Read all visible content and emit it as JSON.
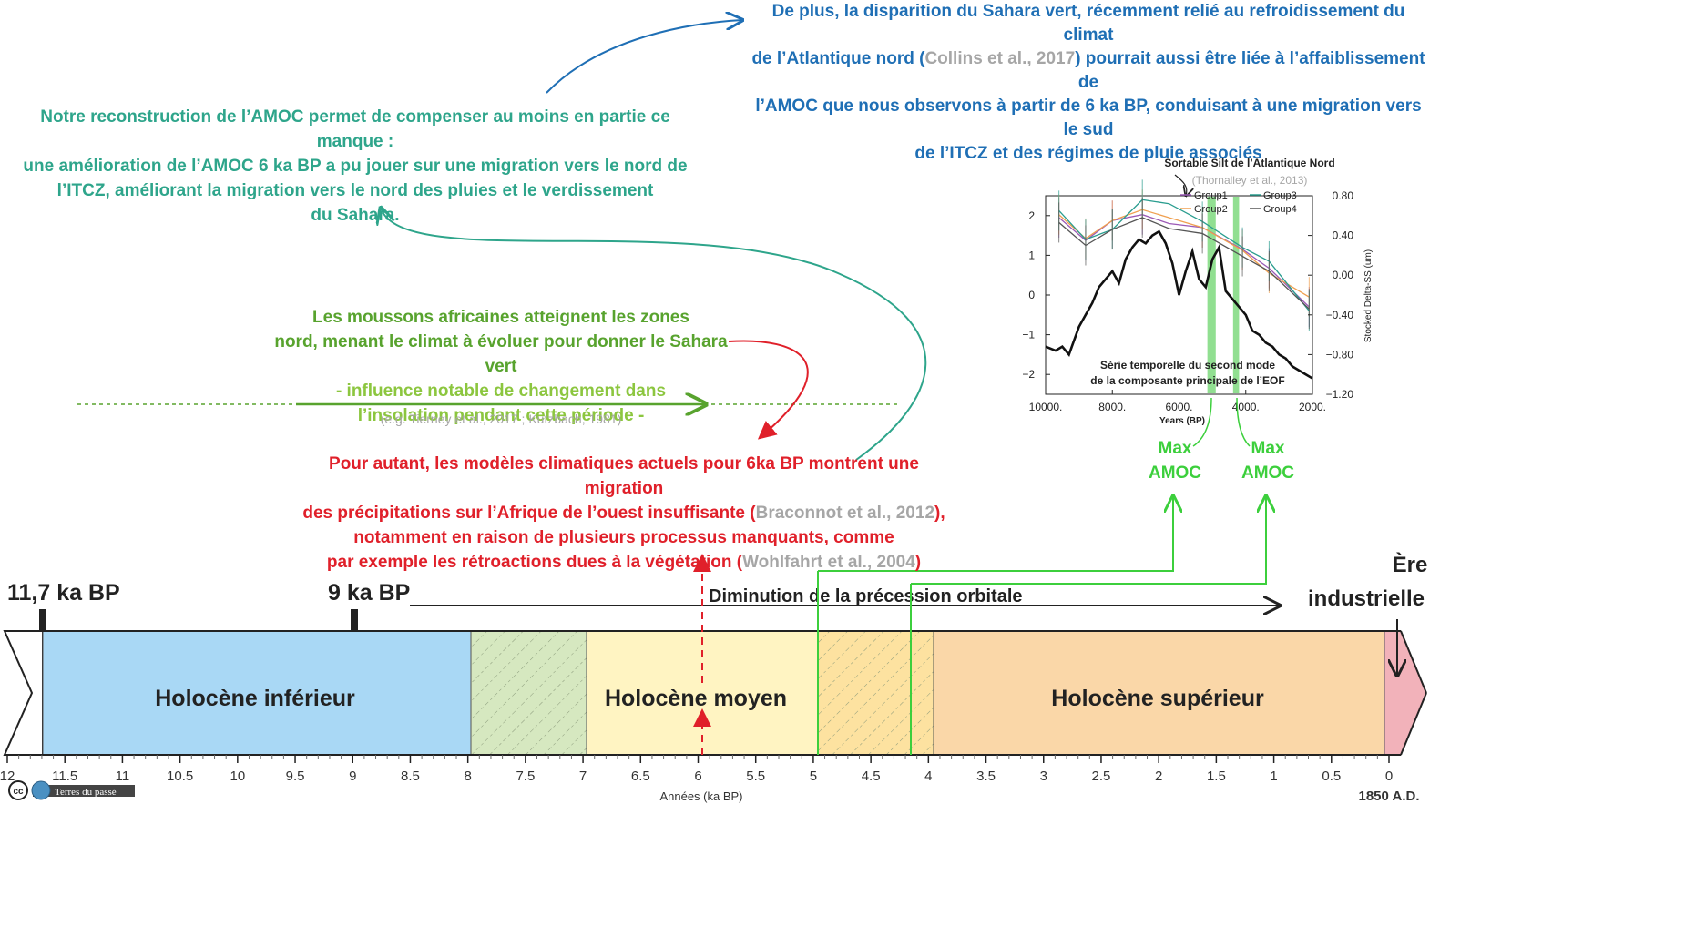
{
  "texts": {
    "amoc_sahara_line1": "De plus, la disparition du Sahara vert, récemment relié au refroidissement du climat",
    "amoc_sahara_line2a": "de l’Atlantique nord (",
    "amoc_sahara_ref": "Collins et al., 2017",
    "amoc_sahara_line2b": ") pourrait aussi être liée à l’affaiblissement de",
    "amoc_sahara_line3": "l’AMOC que nous observons à partir de 6 ka BP, conduisant à une migration vers le sud",
    "amoc_sahara_line4": "de l’ITCZ et des régimes de pluie associés",
    "reconstruction_line1": "Notre reconstruction de l’AMOC permet de compenser au moins en partie ce manque :",
    "reconstruction_line2": "une amélioration de l’AMOC 6 ka BP a pu jouer sur une migration vers le nord de",
    "reconstruction_line3": "l’ITCZ, améliorant la migration vers le nord des pluies et le verdissement",
    "reconstruction_line4": "du Sahara.",
    "monsoon_line1": "Les moussons africaines atteignent les zones",
    "monsoon_line2": "nord, menant le climat à évoluer pour donner le Sahara vert",
    "monsoon_line3": "- influence notable de changement dans",
    "monsoon_line4": "l’insolation pendant cette période -",
    "monsoon_ref": "(e.g. Tierney et al., 2017 ; Kutzbach, 1981)",
    "models_line1": "Pour autant, les modèles climatiques actuels pour 6ka BP montrent une migration",
    "models_line2a": "des précipitations sur l’Afrique de l’ouest insuffisante (",
    "models_ref1": "Braconnot et al., 2012",
    "models_line2b": "),",
    "models_line3": "notamment en raison de plusieurs processus manquants, comme",
    "models_line4a": "par exemple les rétroactions dues à la végétation (",
    "models_ref2": "Wohlfahrt et al., 2004",
    "models_line4b": ")",
    "label_117": "11,7 ka BP",
    "label_9": "9 ka BP",
    "precession": "Diminution de la précession orbitale",
    "industrial_line1": "Ère",
    "industrial_line2": "industrielle",
    "period_lower": "Holocène inférieur",
    "period_middle": "Holocène moyen",
    "period_upper": "Holocène supérieur",
    "axis_label": "Années (ka BP)",
    "axis_end": "1850 A.D.",
    "max_amoc_1a": "Max",
    "max_amoc_1b": "AMOC",
    "max_amoc_2a": "Max",
    "max_amoc_2b": "AMOC",
    "logo_text": "Terres du passé",
    "logo_cc": "cc"
  },
  "axis_ticks": [
    "12",
    "11.5",
    "11",
    "10.5",
    "10",
    "9.5",
    "9",
    "8.5",
    "8",
    "7.5",
    "7",
    "6.5",
    "6",
    "5.5",
    "5",
    "4.5",
    "4",
    "3.5",
    "3",
    "2.5",
    "2",
    "1.5",
    "1",
    "0.5",
    "0"
  ],
  "inset": {
    "title": "Sortable Silt de l’Atlantique Nord",
    "ref": "(Thornalley et al., 2013)",
    "legend": [
      "Group1",
      "Group2",
      "Group3",
      "Group4"
    ],
    "xlabel": "Years (BP)",
    "ylabel_right": "Stocked Delta-SS (um)",
    "eof_line1": "Série temporelle du second mode",
    "eof_line2": "de la composante principale de l’EOF",
    "x_ticks": [
      "10000.",
      "8000.",
      "6000.",
      "4000.",
      "2000."
    ],
    "y_left_ticks": [
      "2",
      "1",
      "0",
      "−1",
      "−2"
    ],
    "y_right_ticks": [
      "0.80",
      "0.40",
      "0.00",
      "−0.40",
      "−0.80",
      "−1.20"
    ]
  },
  "chart_data": {
    "type": "line",
    "xlabel": "Years (BP)",
    "ylabel": "Stocked Delta-SS (um)",
    "xlim": [
      10000,
      2000
    ],
    "ylim_left": [
      -2.5,
      2.5
    ],
    "ylim_right": [
      -1.2,
      0.8
    ],
    "series": [
      {
        "name": "Group1",
        "color": "#9b59b6",
        "x": [
          9600,
          8800,
          8000,
          7100,
          6300,
          5300,
          4100,
          3300,
          2100
        ],
        "y": [
          0.58,
          0.35,
          0.55,
          0.61,
          0.52,
          0.48,
          0.26,
          0.07,
          -0.32
        ]
      },
      {
        "name": "Group2",
        "color": "#f0a050",
        "x": [
          9600,
          8800,
          8000,
          7100,
          6300,
          5300,
          4100,
          3300,
          2100
        ],
        "y": [
          0.61,
          0.37,
          0.55,
          0.66,
          0.58,
          0.48,
          0.25,
          0.02,
          -0.22
        ]
      },
      {
        "name": "Group3",
        "color": "#2a9d8f",
        "x": [
          9600,
          8800,
          8000,
          7100,
          6300,
          5300,
          4100,
          3300,
          2100
        ],
        "y": [
          0.65,
          0.36,
          0.46,
          0.76,
          0.72,
          0.54,
          0.28,
          0.14,
          -0.36
        ]
      },
      {
        "name": "Group4",
        "color": "#555555",
        "x": [
          9600,
          8800,
          8000,
          7100,
          6300,
          5300,
          4100,
          3300,
          2100
        ],
        "y": [
          0.53,
          0.3,
          0.46,
          0.58,
          0.47,
          0.42,
          0.19,
          0.04,
          -0.34
        ]
      }
    ],
    "eof_series": {
      "axis": "left",
      "x": [
        10000,
        9700,
        9500,
        9300,
        9000,
        8800,
        8600,
        8400,
        8200,
        8000,
        7800,
        7600,
        7400,
        7200,
        7000,
        6800,
        6600,
        6400,
        6200,
        6000,
        5800,
        5600,
        5400,
        5200,
        5000,
        4800,
        4600,
        4400,
        4200,
        4000,
        3800,
        3600,
        3400,
        3200,
        3000,
        2800,
        2600,
        2400,
        2200,
        2000
      ],
      "y": [
        -1.3,
        -1.4,
        -1.3,
        -1.5,
        -0.8,
        -0.5,
        -0.2,
        0.2,
        0.4,
        0.6,
        0.3,
        0.9,
        1.2,
        1.4,
        1.3,
        1.5,
        1.6,
        1.3,
        0.8,
        0.0,
        0.6,
        1.1,
        0.4,
        0.2,
        0.9,
        1.2,
        0.1,
        -0.1,
        -0.3,
        -0.5,
        -0.9,
        -1.0,
        -1.2,
        -1.3,
        -1.5,
        -1.6,
        -1.8,
        -1.9,
        -2.0,
        -2.1
      ]
    },
    "highlight_bands": [
      [
        5150,
        4900
      ],
      [
        4380,
        4200
      ]
    ]
  },
  "colors": {
    "lower_holocene": "#a9d8f5",
    "transition_green": "#d6e8c0",
    "middle_holocene": "#fff4c2",
    "transition_orange": "#fde2a0",
    "upper_holocene": "#fad7a8",
    "industrial": "#f2b2ba",
    "blue_text": "#1f6fb5",
    "teal_text": "#2ea58b",
    "green_text": "#58a32e",
    "red_text": "#e0202a",
    "bright_green": "#3ccf3c"
  }
}
